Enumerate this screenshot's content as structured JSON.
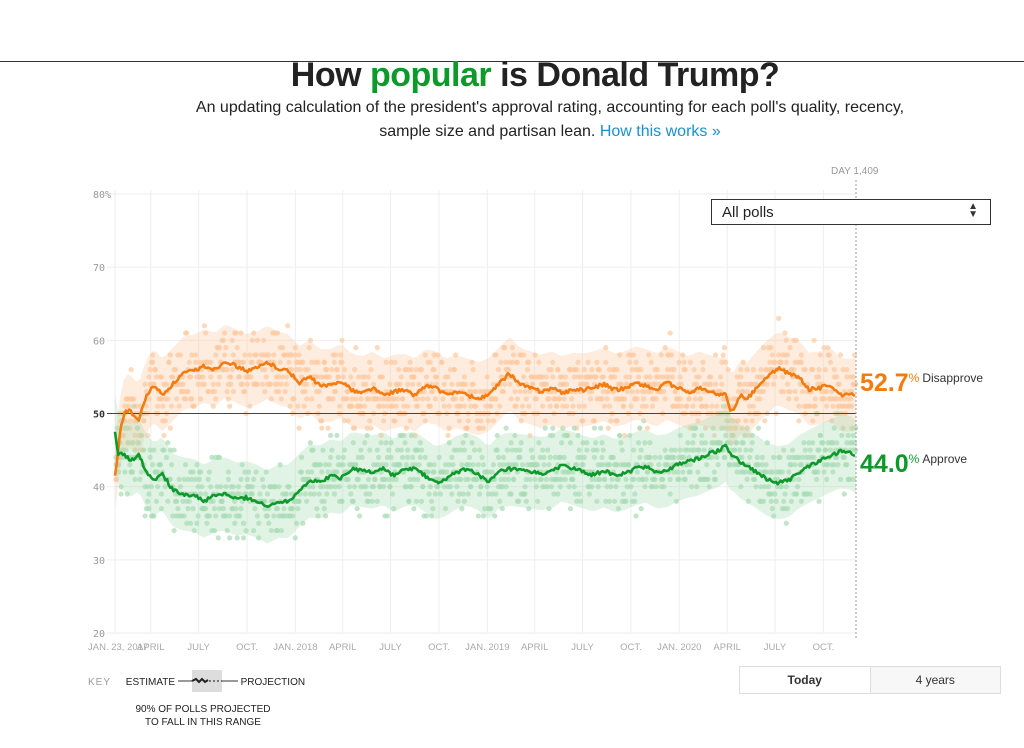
{
  "header": {
    "title_pre": "How ",
    "title_highlight": "popular",
    "title_post": " is Donald Trump?",
    "subtitle": "An updating calculation of the president's approval rating, accounting for each poll's quality, recency, sample size and partisan lean.",
    "link_text": "How this works »"
  },
  "controls": {
    "day_label": "DAY 1,409",
    "poll_filter_selected": "All polls",
    "range_buttons": [
      "Today",
      "4 years"
    ]
  },
  "current": {
    "disapprove_value": "52.7",
    "disapprove_label": "Disapprove",
    "approve_value": "44.0",
    "approve_label": "Approve",
    "pct_sign": "%"
  },
  "key": {
    "title": "KEY",
    "estimate": "ESTIMATE",
    "projection": "PROJECTION",
    "note_line1": "90% OF POLLS PROJECTED",
    "note_line2": "TO FALL IN THIS RANGE"
  },
  "colors": {
    "approve": "#0d9a2b",
    "disapprove": "#f47b0e",
    "approve_dots": "#a8dcb5",
    "disapprove_dots": "#fdc9a0"
  },
  "chart_data": {
    "type": "line",
    "title": "How popular is Donald Trump?",
    "xlabel": "",
    "ylabel": "",
    "x_unit": "day in office",
    "xlim": [
      0,
      1409
    ],
    "ylim": [
      20,
      80
    ],
    "yticks": [
      20,
      30,
      40,
      50,
      60,
      70,
      80
    ],
    "ytick_labels": [
      "20",
      "30",
      "40",
      "50",
      "60",
      "70",
      "80%"
    ],
    "xticks": [
      {
        "day": 0,
        "label": "JAN. 23, 2017"
      },
      {
        "day": 68,
        "label": "APRIL"
      },
      {
        "day": 159,
        "label": "JULY"
      },
      {
        "day": 251,
        "label": "OCT."
      },
      {
        "day": 343,
        "label": "JAN. 2018"
      },
      {
        "day": 433,
        "label": "APRIL"
      },
      {
        "day": 524,
        "label": "JULY"
      },
      {
        "day": 616,
        "label": "OCT."
      },
      {
        "day": 708,
        "label": "JAN. 2019"
      },
      {
        "day": 798,
        "label": "APRIL"
      },
      {
        "day": 889,
        "label": "JULY"
      },
      {
        "day": 981,
        "label": "OCT."
      },
      {
        "day": 1073,
        "label": "JAN. 2020"
      },
      {
        "day": 1164,
        "label": "APRIL"
      },
      {
        "day": 1255,
        "label": "JULY"
      },
      {
        "day": 1347,
        "label": "OCT."
      }
    ],
    "reference_line": 50,
    "grid": true,
    "x": [
      0,
      5,
      10,
      20,
      30,
      45,
      60,
      75,
      90,
      110,
      130,
      150,
      170,
      190,
      210,
      230,
      250,
      270,
      290,
      310,
      330,
      350,
      370,
      390,
      410,
      430,
      450,
      470,
      490,
      510,
      530,
      550,
      570,
      590,
      610,
      630,
      650,
      670,
      690,
      710,
      730,
      750,
      770,
      790,
      810,
      830,
      850,
      870,
      890,
      910,
      930,
      950,
      970,
      990,
      1010,
      1030,
      1050,
      1070,
      1090,
      1110,
      1130,
      1150,
      1160,
      1170,
      1180,
      1190,
      1200,
      1220,
      1240,
      1260,
      1280,
      1300,
      1320,
      1340,
      1360,
      1380,
      1400,
      1409
    ],
    "series": [
      {
        "name": "Disapprove",
        "color": "#f47b0e",
        "values": [
          41.5,
          44,
          48,
          50.5,
          50.2,
          49,
          52.5,
          53.8,
          52.5,
          54,
          55.5,
          55.8,
          56.5,
          56,
          57.2,
          56.5,
          55.8,
          56.2,
          57,
          56.2,
          55.8,
          54.2,
          55,
          53.8,
          53.8,
          54.5,
          53.2,
          52.8,
          53.5,
          52.5,
          53,
          53.2,
          52.5,
          53.8,
          53.5,
          52.5,
          53,
          52.5,
          52,
          52.5,
          54,
          55.5,
          54,
          53.5,
          53,
          53.5,
          52.8,
          53.3,
          53.2,
          53.5,
          54,
          53.2,
          53.5,
          54.2,
          53.8,
          53.2,
          54.2,
          53.5,
          52.8,
          53.5,
          53,
          52.5,
          53,
          50.2,
          51,
          52.5,
          51.8,
          53.5,
          55,
          56.2,
          55.5,
          55,
          53.3,
          53.5,
          54,
          52.5,
          52.5,
          52.7
        ]
      },
      {
        "name": "Approve",
        "color": "#0d9a2b",
        "values": [
          47.5,
          44.5,
          44.8,
          44.2,
          43.5,
          44.5,
          42,
          41,
          41.8,
          39.5,
          39,
          38.8,
          38,
          38.8,
          39,
          38.3,
          38.5,
          38,
          37.2,
          38,
          38,
          39.5,
          40.8,
          40.6,
          41.5,
          41.2,
          42.5,
          42.2,
          42,
          42.5,
          41.5,
          42.3,
          42.5,
          41.5,
          40.5,
          41,
          42,
          42.4,
          41.8,
          40.5,
          42,
          42.4,
          42.2,
          42,
          41.8,
          42,
          43,
          42.5,
          42,
          41.6,
          42.2,
          41.5,
          41.8,
          42.5,
          42.8,
          42,
          42.2,
          43,
          43.5,
          43.8,
          44.5,
          45,
          45.8,
          44.5,
          44.2,
          43.2,
          43,
          42,
          41,
          40.5,
          40.8,
          42,
          42.8,
          43.5,
          44.2,
          44.8,
          44.6,
          44
        ]
      }
    ]
  }
}
